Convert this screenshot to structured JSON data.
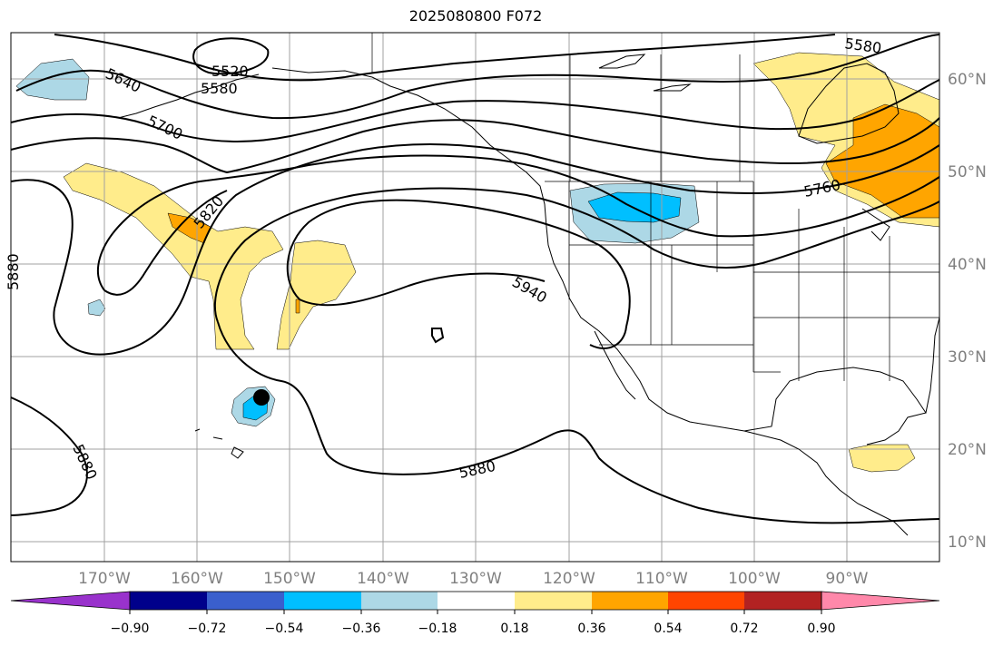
{
  "title": "2025080800 F072",
  "map": {
    "projection": "cylindrical",
    "lon_range": [
      -180,
      -80
    ],
    "lat_range": [
      8,
      65
    ],
    "lon_labels": [
      "170°W",
      "160°W",
      "150°W",
      "140°W",
      "130°W",
      "120°W",
      "110°W",
      "100°W",
      "90°W"
    ],
    "lat_labels": [
      "60°N",
      "50°N",
      "40°N",
      "30°N",
      "20°N",
      "10°N"
    ],
    "contour_labels": [
      "5520",
      "5580",
      "5640",
      "5700",
      "5820",
      "5880",
      "5880",
      "5940",
      "5760",
      "5580",
      "5880"
    ],
    "marker": "black-dot"
  },
  "colorbar": {
    "colors": [
      "#9932cc",
      "#00008b",
      "#3a5fcd",
      "#00bfff",
      "#add8e6",
      "#ffffff",
      "#ffec8b",
      "#ffa500",
      "#ff4500",
      "#b22222",
      "#ff88aa"
    ],
    "tick_labels": [
      "−0.90",
      "−0.72",
      "−0.54",
      "−0.36",
      "−0.18",
      "0.18",
      "0.36",
      "0.54",
      "0.72",
      "0.90"
    ]
  }
}
